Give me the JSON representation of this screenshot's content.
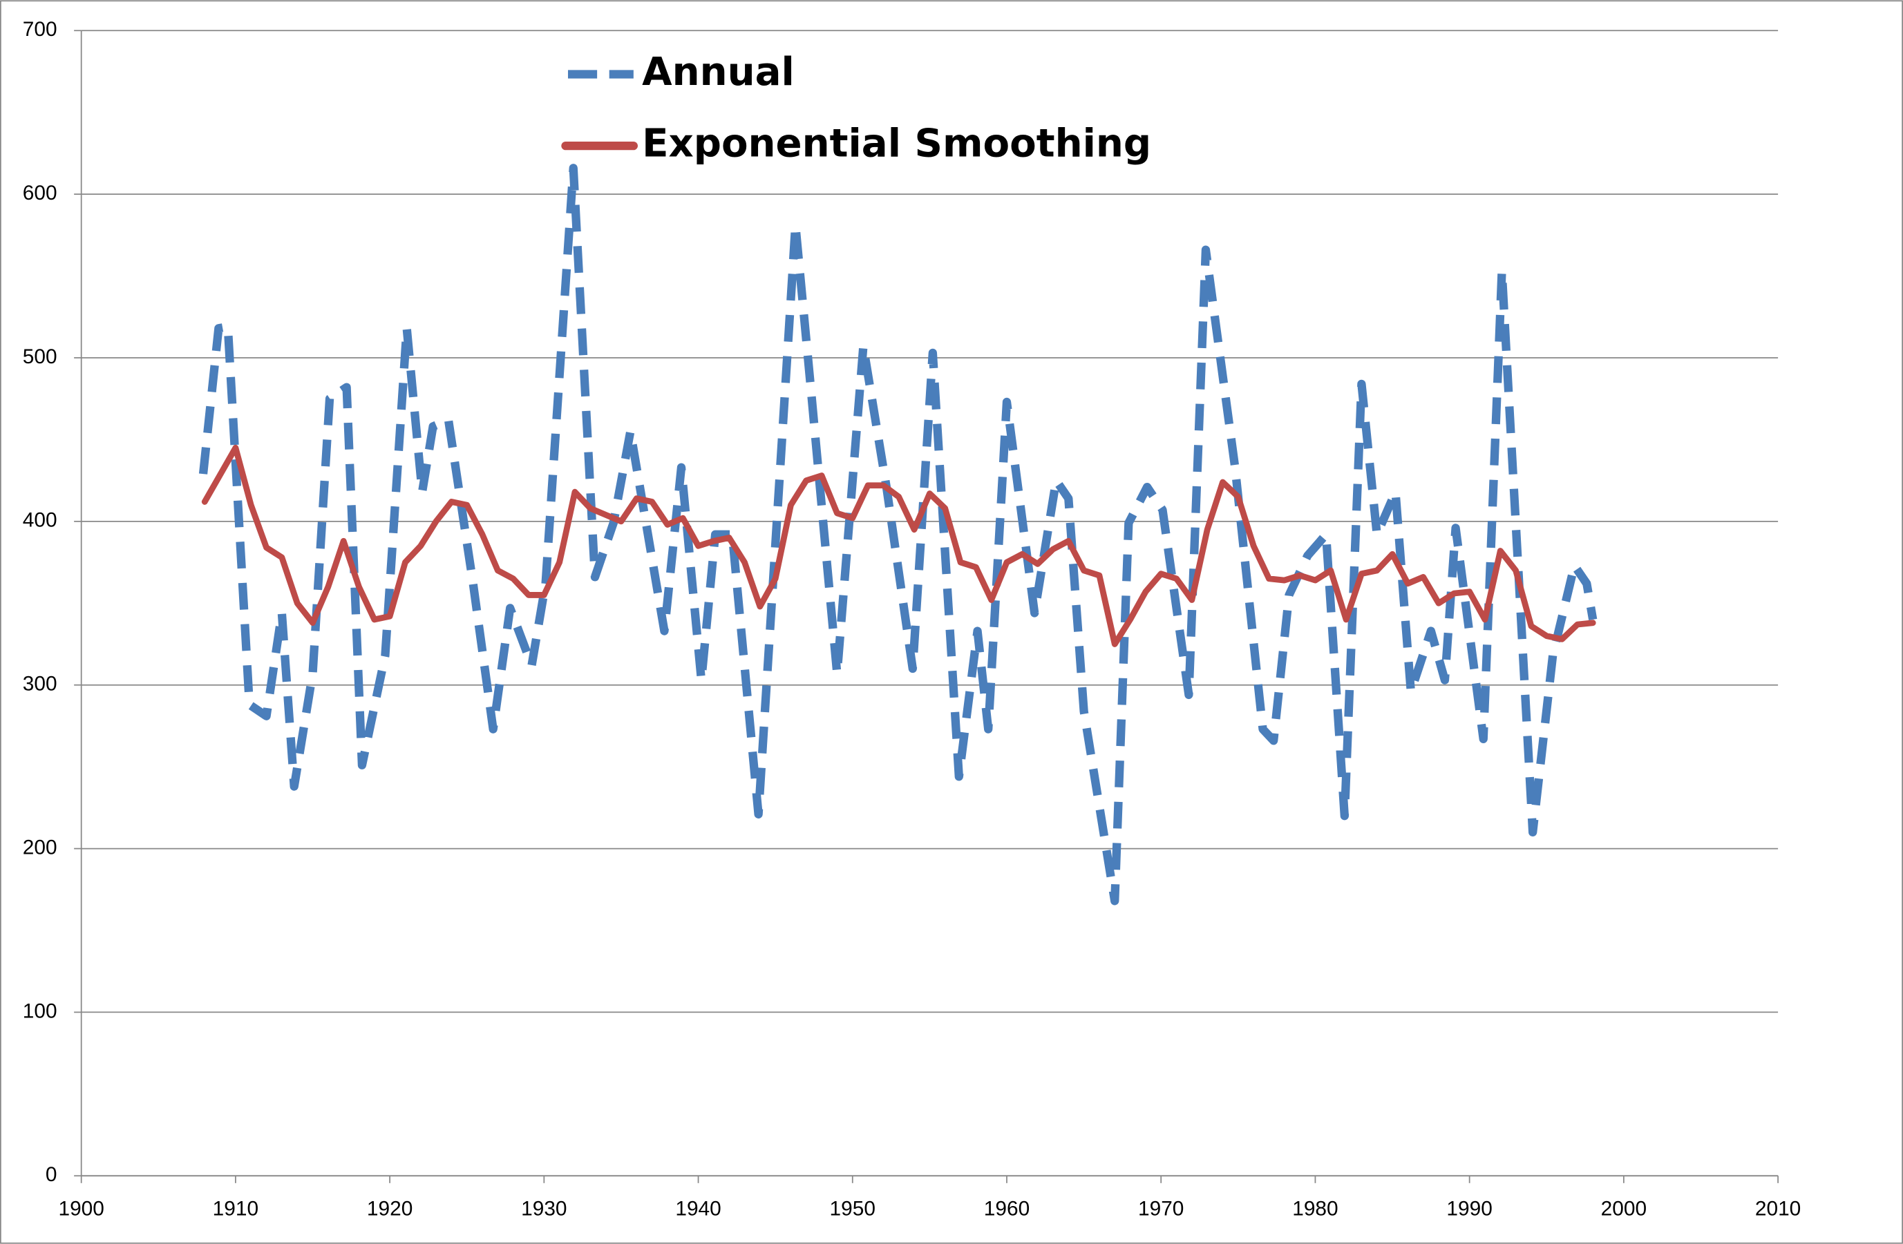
{
  "chart_data": {
    "type": "line",
    "xlim": [
      1900,
      2010
    ],
    "xticks": [
      1900,
      1910,
      1920,
      1930,
      1940,
      1950,
      1960,
      1970,
      1980,
      1990,
      2000,
      2010
    ],
    "ylim": [
      0,
      700
    ],
    "yticks": [
      0,
      100,
      200,
      300,
      400,
      500,
      600,
      700
    ],
    "grid": true,
    "legend": "top",
    "series": [
      {
        "name": "Annual",
        "color": "#4a7ebb",
        "dashed": true,
        "x": [
          1907.9,
          1908.9,
          1909.5,
          1910.9,
          1912.0,
          1913.0,
          1913.8,
          1915.0,
          1916.1,
          1917.2,
          1918.2,
          1919.7,
          1921.1,
          1922.1,
          1922.8,
          1923.8,
          1925.4,
          1926.7,
          1927.8,
          1929.2,
          1930.1,
          1931.9,
          1933.3,
          1934.5,
          1935.6,
          1937.8,
          1938.9,
          1940.2,
          1941.1,
          1942.2,
          1943.9,
          1946.3,
          1947.3,
          1949.0,
          1950.7,
          1952.2,
          1953.9,
          1955.2,
          1956.9,
          1958.1,
          1958.8,
          1960.0,
          1961.8,
          1963.2,
          1964.0,
          1965.0,
          1967.0,
          1967.9,
          1969.1,
          1970.1,
          1971.8,
          1972.9,
          1974.8,
          1976.6,
          1977.3,
          1978.3,
          1979.5,
          1980.7,
          1981.9,
          1983.0,
          1984.0,
          1985.2,
          1986.2,
          1987.5,
          1988.4,
          1989.1,
          1990.9,
          1992.1,
          1994.1,
          1995.4,
          1996.8,
          1997.6,
          1998.0
        ],
        "values": [
          429,
          518,
          519,
          288,
          281,
          344,
          238,
          307,
          475,
          482,
          251,
          318,
          518,
          418,
          458,
          462,
          362,
          273,
          347,
          312,
          362,
          616,
          366,
          399,
          455,
          333,
          433,
          303,
          392,
          392,
          221,
          581,
          481,
          307,
          507,
          421,
          310,
          503,
          244,
          333,
          273,
          473,
          344,
          425,
          414,
          284,
          168,
          399,
          421,
          407,
          294,
          566,
          433,
          273,
          266,
          355,
          379,
          392,
          220,
          484,
          392,
          418,
          296,
          333,
          303,
          396,
          267,
          553,
          210,
          318,
          373,
          362,
          340
        ]
      },
      {
        "name": "Exponential Smoothing",
        "color": "#be4b48",
        "dashed": false,
        "x": [
          1908,
          1910,
          1911,
          1912,
          1913,
          1914,
          1915,
          1916,
          1917,
          1918,
          1919,
          1920,
          1921,
          1922,
          1923,
          1924,
          1925,
          1926,
          1927,
          1928,
          1929,
          1930,
          1931,
          1932,
          1933,
          1934,
          1935,
          1936,
          1937,
          1938,
          1939,
          1940,
          1941,
          1942,
          1943,
          1944,
          1945,
          1946,
          1947,
          1948,
          1949,
          1950,
          1951,
          1952,
          1953,
          1954,
          1955,
          1956,
          1957,
          1958,
          1959,
          1960,
          1961,
          1962,
          1963,
          1964,
          1965,
          1966,
          1967,
          1968,
          1969,
          1970,
          1971,
          1972,
          1973,
          1974,
          1975,
          1976,
          1977,
          1978,
          1979,
          1980,
          1981,
          1982,
          1983,
          1984,
          1985,
          1986,
          1987,
          1988,
          1989,
          1990,
          1991,
          1992,
          1993,
          1994,
          1995,
          1996,
          1997,
          1998
        ],
        "values": [
          412,
          445,
          410,
          384,
          378,
          350,
          338,
          360,
          388,
          360,
          340,
          342,
          375,
          385,
          400,
          412,
          410,
          392,
          370,
          365,
          355,
          355,
          375,
          418,
          408,
          404,
          400,
          414,
          412,
          398,
          402,
          385,
          388,
          390,
          375,
          348,
          365,
          410,
          425,
          428,
          405,
          402,
          422,
          422,
          415,
          395,
          417,
          408,
          375,
          372,
          352,
          375,
          380,
          374,
          383,
          388,
          370,
          367,
          325,
          340,
          357,
          368,
          365,
          352,
          395,
          424,
          415,
          385,
          365,
          364,
          367,
          364,
          370,
          340,
          368,
          370,
          380,
          362,
          366,
          350,
          356,
          357,
          340,
          382,
          370,
          336,
          330,
          328,
          337,
          338
        ]
      }
    ]
  }
}
